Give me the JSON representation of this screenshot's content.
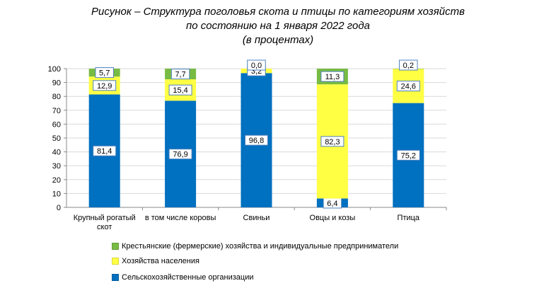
{
  "title_lines": [
    "Рисунок – Структура поголовья скота и птицы по категориям хозяйств",
    "по состоянию на 1 января 2022 года",
    "(в процентах)"
  ],
  "colors": {
    "farm": "#77bb44",
    "household": "#ffff44",
    "agri_org": "#0070c0",
    "grid": "#d9d9d9",
    "axis": "#888888"
  },
  "chart_data": {
    "type": "bar",
    "stacked": true,
    "categories": [
      "Крупный рогатый скот",
      "в том числе коровы",
      "Свиньи",
      "Овцы и козы",
      "Птица"
    ],
    "category_lines": [
      [
        "Крупный рогатый",
        "скот"
      ],
      [
        "в том числе коровы"
      ],
      [
        "Свиньи"
      ],
      [
        "Овцы и козы"
      ],
      [
        "Птица"
      ]
    ],
    "series": [
      {
        "name": "Сельскохозяйственные организации",
        "color_key": "agri_org",
        "values": [
          81.4,
          76.9,
          96.8,
          6.4,
          75.2
        ],
        "labels": [
          "81,4",
          "76,9",
          "96,8",
          "6,4",
          "75,2"
        ]
      },
      {
        "name": "Хозяйства населения",
        "color_key": "household",
        "values": [
          12.9,
          15.4,
          3.2,
          82.3,
          24.6
        ],
        "labels": [
          "12,9",
          "15,4",
          "3,2",
          "82,3",
          "24,6"
        ]
      },
      {
        "name": "Крестьянские (фермерские) хозяйства и индивидуальные предприниматели",
        "color_key": "farm",
        "values": [
          5.7,
          7.7,
          0.0,
          11.3,
          0.2
        ],
        "labels": [
          "5,7",
          "7,7",
          "0,0",
          "11,3",
          "0,2"
        ]
      }
    ],
    "ylim": [
      0,
      100
    ],
    "yticks": [
      0,
      10,
      20,
      30,
      40,
      50,
      60,
      70,
      80,
      90,
      100
    ],
    "grid": true,
    "legend_position": "bottom",
    "legend_order": [
      "Крестьянские (фермерские) хозяйства и индивидуальные предприниматели",
      "Хозяйства населения",
      "Сельскохозяйственные организации"
    ]
  }
}
